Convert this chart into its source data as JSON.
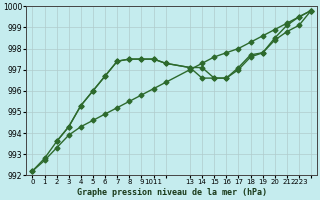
{
  "title": "Graphe pression niveau de la mer (hPa)",
  "background_color": "#c5ecee",
  "grid_color": "#b0cccc",
  "line_color": "#2d6a2d",
  "ylim": [
    992,
    1000
  ],
  "xlim": [
    -0.5,
    23.5
  ],
  "yticks": [
    992,
    993,
    994,
    995,
    996,
    997,
    998,
    999,
    1000
  ],
  "series": [
    {
      "x": [
        0,
        1,
        2,
        3,
        4,
        5,
        6,
        7,
        8,
        9,
        10,
        11,
        13,
        14,
        15,
        16,
        17,
        18,
        19,
        20,
        21,
        22,
        23
      ],
      "y": [
        992.2,
        992.8,
        993.6,
        994.3,
        995.3,
        996.0,
        996.7,
        997.4,
        997.5,
        997.5,
        997.5,
        997.3,
        997.1,
        997.1,
        996.6,
        996.6,
        997.1,
        997.7,
        997.8,
        998.5,
        999.1,
        999.5,
        999.8
      ],
      "marker": "D",
      "markersize": 2.5,
      "linewidth": 1.0
    },
    {
      "x": [
        0,
        1,
        2,
        3,
        4,
        5,
        6,
        7,
        8,
        9,
        10,
        11,
        13,
        14,
        15,
        16,
        17,
        18,
        19,
        20,
        21,
        22,
        23
      ],
      "y": [
        992.2,
        992.7,
        993.3,
        993.9,
        994.3,
        994.6,
        994.9,
        995.2,
        995.5,
        995.8,
        996.1,
        996.4,
        997.0,
        997.3,
        997.6,
        997.8,
        998.0,
        998.3,
        998.6,
        998.9,
        999.2,
        999.5,
        999.8
      ],
      "marker": "D",
      "markersize": 2.5,
      "linewidth": 1.0
    },
    {
      "x": [
        2,
        3,
        4,
        5,
        6,
        7,
        8,
        9,
        10,
        11,
        13,
        14,
        15,
        16,
        17,
        18,
        19,
        20,
        21,
        22,
        23
      ],
      "y": [
        993.6,
        994.3,
        995.3,
        996.0,
        996.7,
        997.4,
        997.5,
        997.5,
        997.5,
        997.3,
        997.1,
        996.6,
        996.6,
        996.6,
        997.0,
        997.6,
        997.8,
        998.4,
        998.8,
        999.1,
        999.8
      ],
      "marker": "D",
      "markersize": 2.5,
      "linewidth": 1.0
    }
  ],
  "xtick_positions": [
    0,
    1,
    2,
    3,
    4,
    5,
    6,
    7,
    8,
    9,
    10,
    11,
    13,
    14,
    15,
    16,
    17,
    18,
    19,
    20,
    21,
    22,
    23
  ],
  "xtick_labels": [
    "0",
    "1",
    "2",
    "3",
    "4",
    "5",
    "6",
    "7",
    "8",
    "9",
    "1011",
    "",
    "13",
    "14",
    "15",
    "16",
    "17",
    "18",
    "19",
    "20",
    "21",
    "2223",
    ""
  ]
}
